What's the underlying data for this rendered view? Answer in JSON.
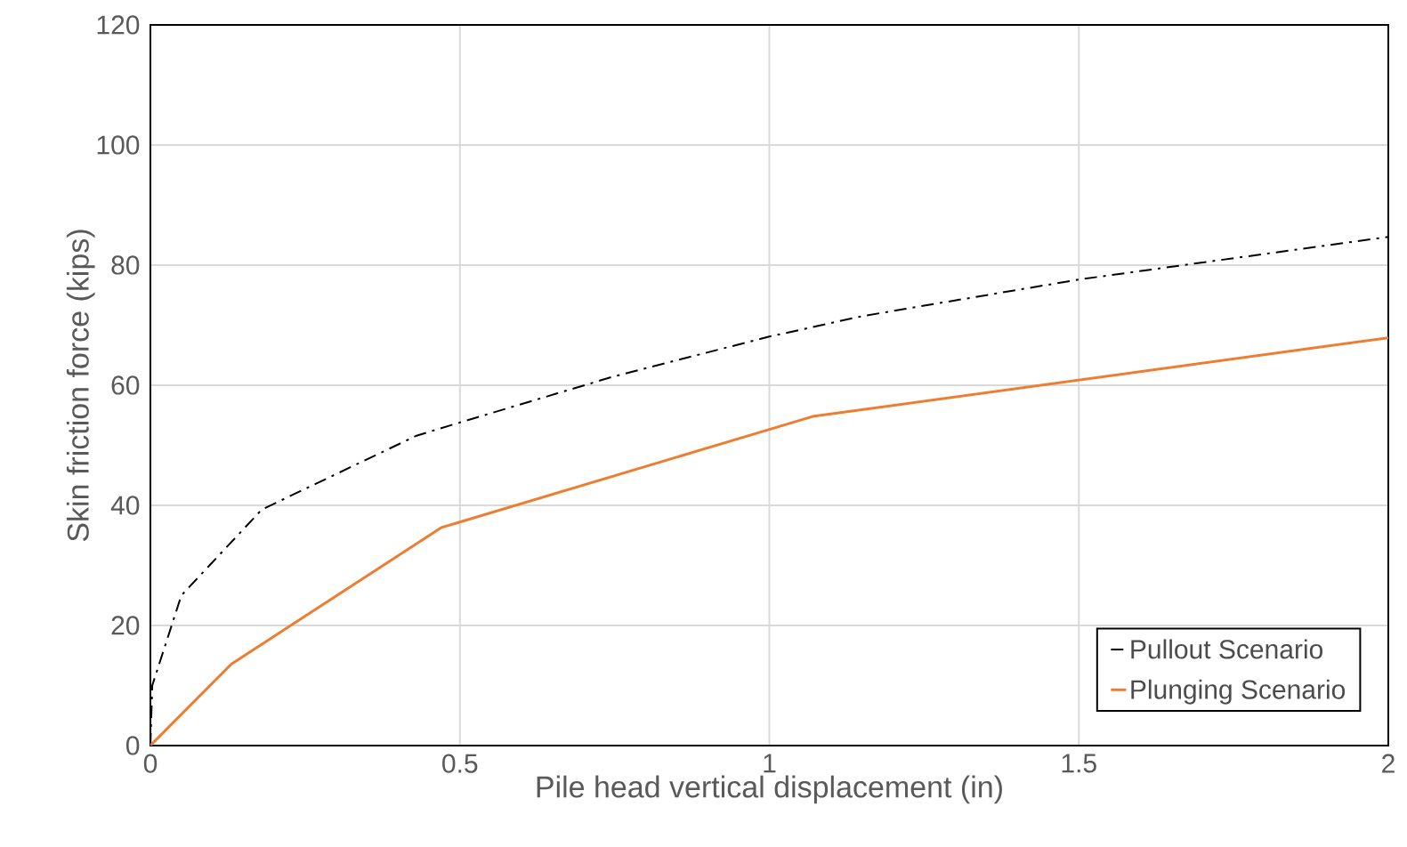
{
  "chart_data": {
    "type": "line",
    "xlabel": "Pile head vertical displacement (in)",
    "ylabel": "Skin friction force (kips)",
    "xlim": [
      0,
      2
    ],
    "ylim": [
      0,
      120
    ],
    "xticks": [
      0,
      0.5,
      1,
      1.5,
      2
    ],
    "yticks": [
      0,
      20,
      40,
      60,
      80,
      100,
      120
    ],
    "grid": true,
    "legend": "bottom right",
    "marker": "none",
    "series": [
      {
        "name": "Pullout Scenario",
        "color": "#000000",
        "line_style": "dashdot",
        "x": [
          0,
          0.003,
          0.05,
          0.18,
          0.43,
          0.5,
          0.75,
          1.0,
          1.15,
          1.5,
          2.0
        ],
        "values": [
          0,
          10,
          25,
          39.3,
          51.6,
          53.8,
          61.5,
          68.1,
          71.5,
          77.6,
          84.7
        ]
      },
      {
        "name": "Plunging Scenario",
        "color": "#ed7d31",
        "line_style": "solid",
        "x": [
          0,
          0.13,
          0.47,
          1.07,
          2.0
        ],
        "values": [
          0,
          13.5,
          36.3,
          54.8,
          67.9
        ]
      }
    ]
  }
}
